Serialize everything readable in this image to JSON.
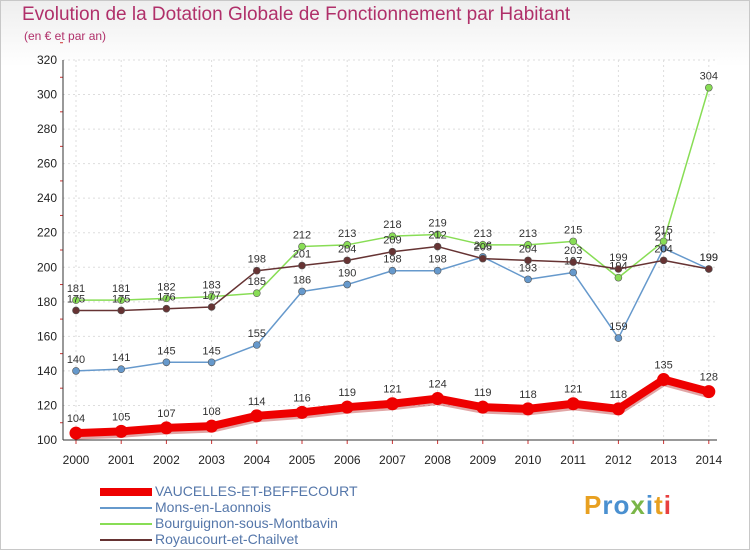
{
  "title": "Evolution de la Dotation Globale de Fonctionnement par Habitant",
  "subtitle": "(en € et par an)",
  "logo": "Proxiti",
  "chart_data": {
    "type": "line",
    "x": [
      "2000",
      "2001",
      "2002",
      "2003",
      "2004",
      "2005",
      "2006",
      "2007",
      "2008",
      "2009",
      "2010",
      "2011",
      "2012",
      "2013",
      "2014"
    ],
    "ylim": [
      100,
      320
    ],
    "yticks": [
      100,
      120,
      140,
      160,
      180,
      200,
      220,
      240,
      260,
      280,
      300,
      320
    ],
    "grid": true,
    "legend_position": "bottom-left",
    "series": [
      {
        "name": "VAUCELLES-ET-BEFFECOURT",
        "color": "#ee0000",
        "values": [
          104,
          105,
          107,
          108,
          114,
          116,
          119,
          121,
          124,
          119,
          118,
          121,
          118,
          135,
          128
        ],
        "labels": [
          "104",
          "105",
          "107",
          "108",
          "114",
          "116",
          "119",
          "121",
          "124",
          "119",
          "118",
          "121",
          "118",
          "135",
          "128"
        ]
      },
      {
        "name": "Mons-en-Laonnois",
        "color": "#6699cc",
        "values": [
          140,
          141,
          145,
          145,
          155,
          186,
          190,
          198,
          198,
          206,
          193,
          197,
          159,
          211,
          199
        ],
        "labels": [
          "140",
          "141",
          "145",
          "145",
          "155",
          "186",
          "190",
          "198",
          "198",
          "206",
          "193",
          "197",
          "159",
          "211",
          "199"
        ]
      },
      {
        "name": "Bourguignon-sous-Montbavin",
        "color": "#88dd55",
        "values": [
          181,
          181,
          182,
          183,
          185,
          212,
          213,
          218,
          219,
          213,
          213,
          215,
          194,
          215,
          304
        ],
        "labels": [
          "181",
          "181",
          "182",
          "183",
          "185",
          "212",
          "213",
          "218",
          "219",
          "213",
          "213",
          "215",
          "194",
          "215",
          "304"
        ]
      },
      {
        "name": "Royaucourt-et-Chailvet",
        "color": "#663333",
        "values": [
          175,
          175,
          176,
          177,
          198,
          201,
          204,
          209,
          212,
          205,
          204,
          203,
          199,
          204,
          199
        ],
        "labels": [
          "175",
          "175",
          "176",
          "177",
          "198",
          "201",
          "204",
          "209",
          "212",
          "205",
          "204",
          "203",
          "199",
          "204",
          "199"
        ]
      }
    ]
  }
}
